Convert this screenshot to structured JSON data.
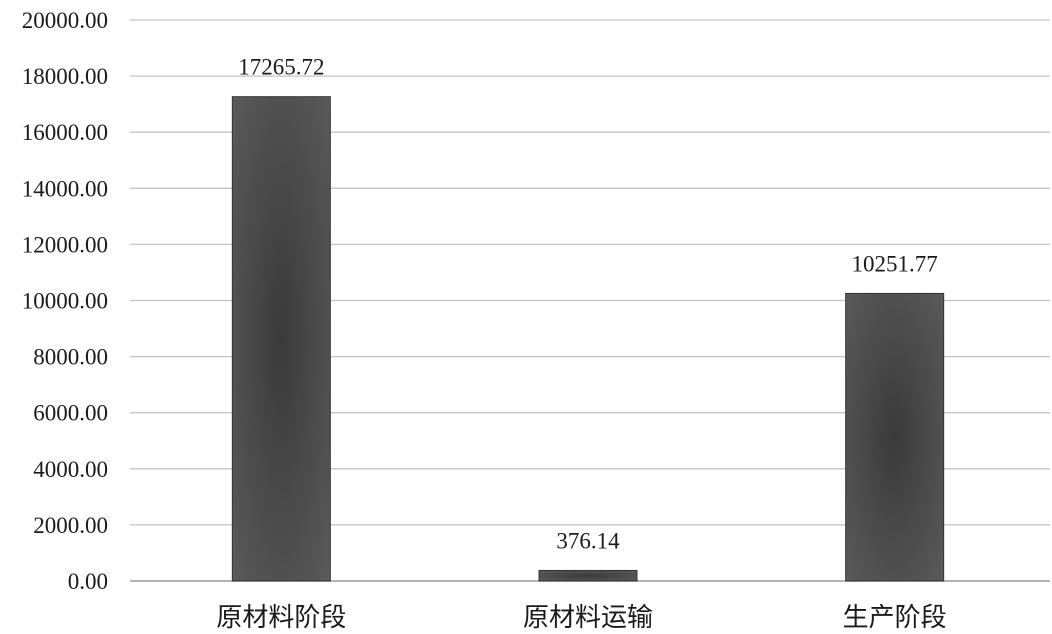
{
  "chart_data": {
    "type": "bar",
    "categories": [
      "原材料阶段",
      "原材料运输",
      "生产阶段"
    ],
    "values": [
      17265.72,
      376.14,
      10251.77
    ],
    "data_labels": [
      "17265.72",
      "376.14",
      "10251.77"
    ],
    "title": "",
    "xlabel": "",
    "ylabel": "",
    "ylim": [
      0,
      20000
    ],
    "yticks": [
      0,
      2000,
      4000,
      6000,
      8000,
      10000,
      12000,
      14000,
      16000,
      18000,
      20000
    ],
    "ytick_labels": [
      "0.00",
      "2000.00",
      "4000.00",
      "6000.00",
      "8000.00",
      "10000.00",
      "12000.00",
      "14000.00",
      "16000.00",
      "18000.00",
      "20000.00"
    ],
    "grid": true,
    "legend": "none",
    "bar_color": "#4a4a4a",
    "grid_color": "#c4c4c4"
  }
}
